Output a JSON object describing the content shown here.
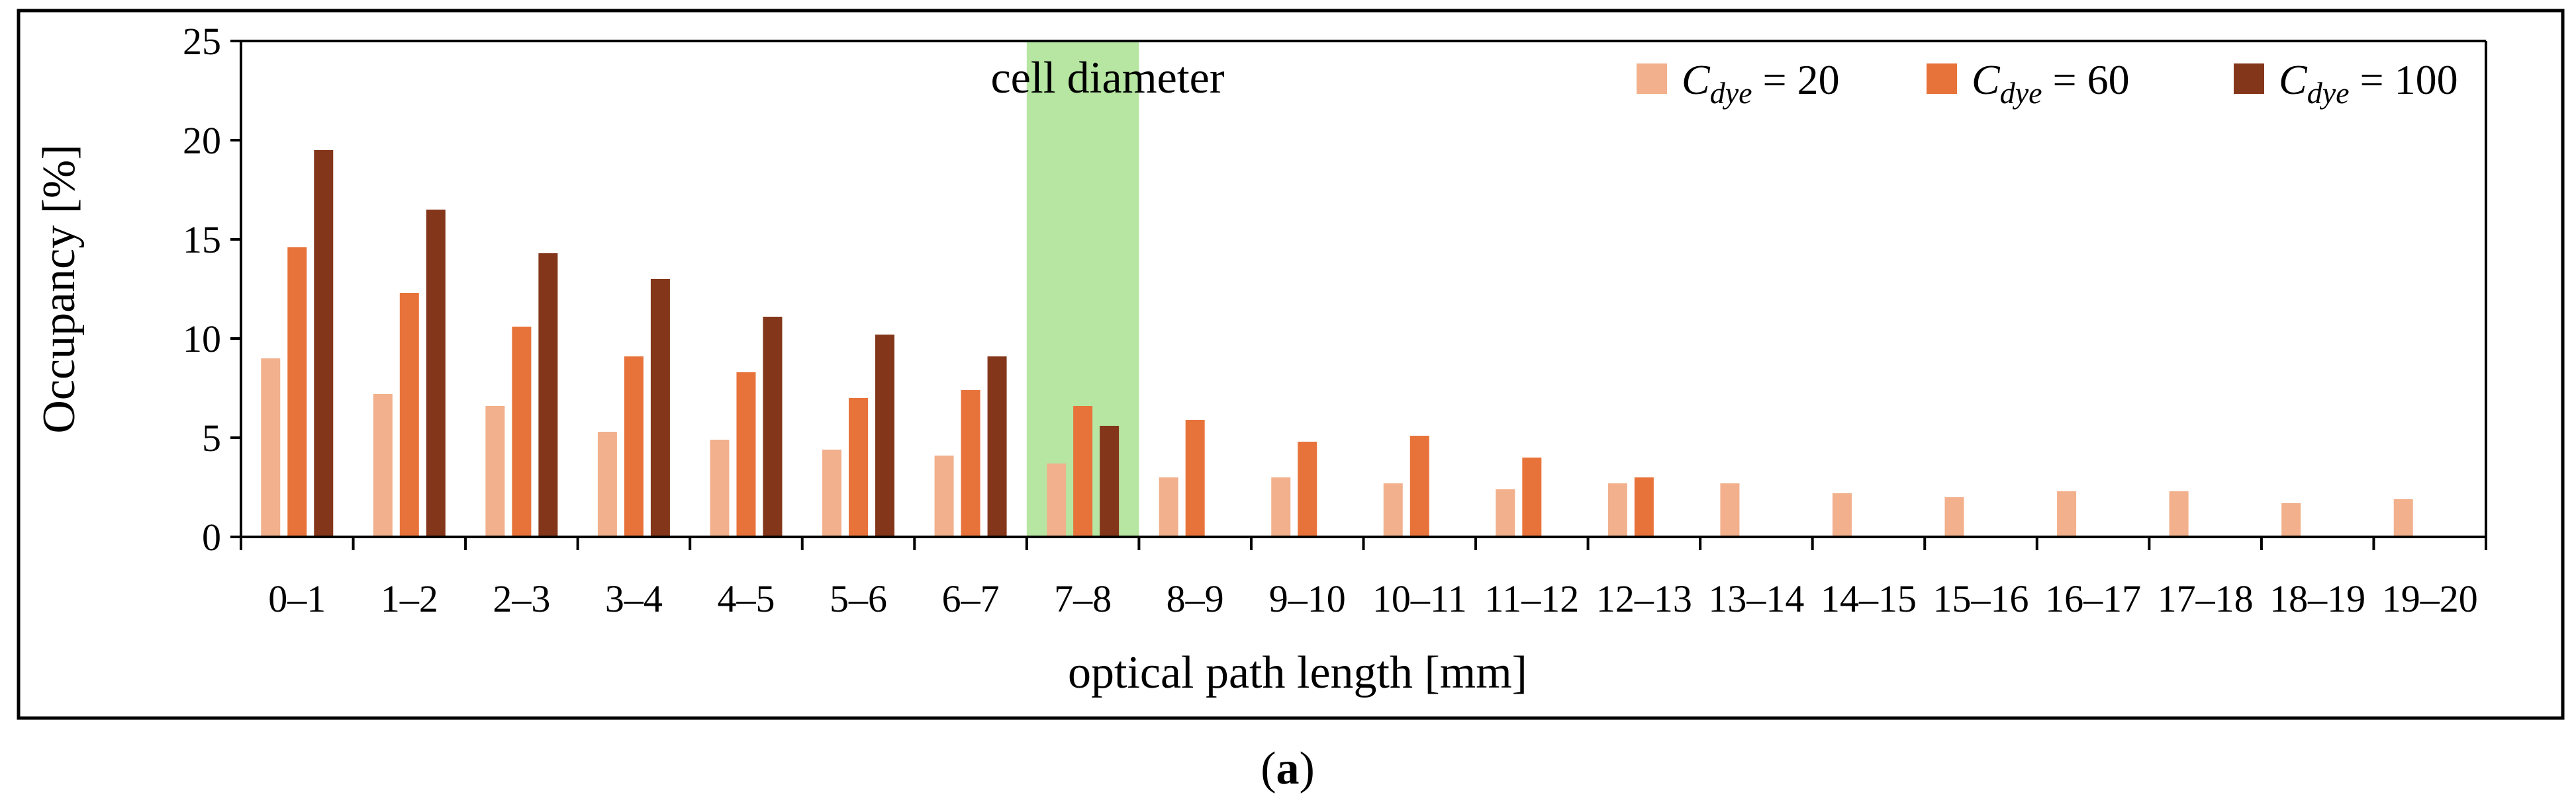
{
  "chart_data": {
    "type": "bar",
    "title": "",
    "xlabel": "optical path length [mm]",
    "ylabel": "Occupancy [%]",
    "ylim": [
      0,
      25
    ],
    "yticks": [
      "0",
      "5",
      "10",
      "15",
      "20",
      "25"
    ],
    "categories": [
      "0–1",
      "1–2",
      "2–3",
      "3–4",
      "4–5",
      "5–6",
      "6–7",
      "7–8",
      "8–9",
      "9–10",
      "10–11",
      "11–12",
      "12–13",
      "13–14",
      "14–15",
      "15–16",
      "16–17",
      "17–18",
      "18–19",
      "19–20"
    ],
    "series": [
      {
        "name": "C_dye = 20",
        "legend_var": "C",
        "legend_sub": "dye",
        "legend_rest": " = 20",
        "color": "#f2b08c",
        "values": [
          9.0,
          7.2,
          6.6,
          5.3,
          4.9,
          4.4,
          4.1,
          3.7,
          3.0,
          3.0,
          2.7,
          2.4,
          2.7,
          2.7,
          2.2,
          2.0,
          2.3,
          2.3,
          1.7,
          1.9
        ]
      },
      {
        "name": "C_dye = 60",
        "legend_var": "C",
        "legend_sub": "dye",
        "legend_rest": " = 60",
        "color": "#e8733a",
        "values": [
          14.6,
          12.3,
          10.6,
          9.1,
          8.3,
          7.0,
          7.4,
          6.6,
          5.9,
          4.8,
          5.1,
          4.0,
          3.0,
          null,
          null,
          null,
          null,
          null,
          null,
          null
        ]
      },
      {
        "name": "C_dye = 100",
        "legend_var": "C",
        "legend_sub": "dye",
        "legend_rest": " = 100",
        "color": "#84361a",
        "values": [
          19.5,
          16.5,
          14.3,
          13.0,
          11.1,
          10.2,
          9.1,
          5.6,
          null,
          null,
          null,
          null,
          null,
          null,
          null,
          null,
          null,
          null,
          null,
          null
        ]
      }
    ],
    "highlight": {
      "label": "cell diameter",
      "category": "7–8",
      "color": "#b6e6a2"
    },
    "legend_position": "top-right",
    "grid": false
  },
  "caption": {
    "open": "(",
    "letter": "a",
    "close": ")"
  }
}
